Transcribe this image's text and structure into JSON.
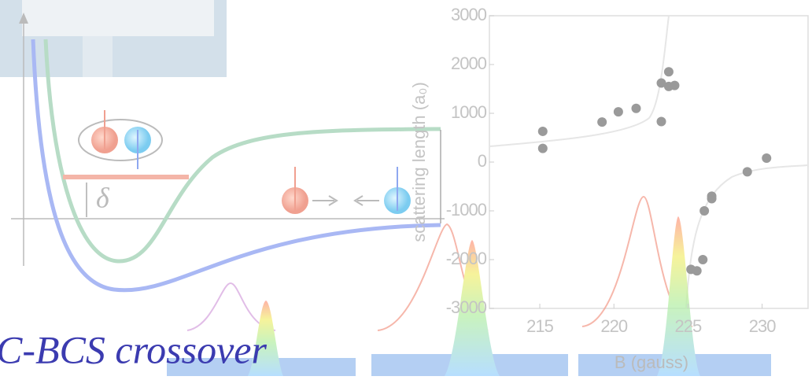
{
  "texts": {
    "heading": "C-BCS crossover",
    "delta": "δ"
  },
  "chart_data": {
    "type": "scatter",
    "x_label": "B (gauss)",
    "y_label": "scattering length (a₀)",
    "x": [
      215.2,
      215.2,
      219.2,
      220.3,
      221.5,
      223.2,
      223.7,
      223.7,
      224.1,
      223.2,
      226.1,
      226.6,
      226.6,
      225.2,
      225.6,
      226.0,
      229.0,
      230.3
    ],
    "values": [
      630,
      280,
      820,
      1030,
      1100,
      1620,
      1850,
      1550,
      1570,
      830,
      -1000,
      -700,
      -750,
      -2200,
      -2230,
      -2000,
      -200,
      80
    ],
    "color": "#9a9a9a",
    "xlim": [
      211.6,
      233.1
    ],
    "ylim": [
      -3000,
      3000
    ],
    "xticks": [
      215,
      220,
      225,
      230
    ],
    "yticks": [
      3000,
      2000,
      1000,
      0,
      -1000,
      -2000,
      -3000
    ]
  }
}
